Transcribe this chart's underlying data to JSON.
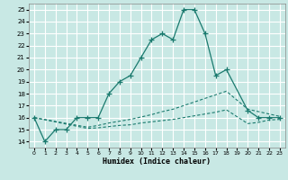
{
  "xlabel": "Humidex (Indice chaleur)",
  "bg_color": "#c8e8e4",
  "grid_color": "#ffffff",
  "line_color": "#1a7a6e",
  "xlim": [
    -0.5,
    23.5
  ],
  "ylim": [
    13.5,
    25.5
  ],
  "xticks": [
    0,
    1,
    2,
    3,
    4,
    5,
    6,
    7,
    8,
    9,
    10,
    11,
    12,
    13,
    14,
    15,
    16,
    17,
    18,
    19,
    20,
    21,
    22,
    23
  ],
  "yticks": [
    14,
    15,
    16,
    17,
    18,
    19,
    20,
    21,
    22,
    23,
    24,
    25
  ],
  "s1_x": [
    0,
    1,
    2,
    3,
    4,
    5,
    6,
    7,
    8,
    9,
    10,
    11,
    12,
    13,
    14,
    15,
    16,
    17,
    18,
    20,
    21,
    22,
    23
  ],
  "s1_y": [
    16,
    14,
    15,
    15,
    16,
    16,
    16,
    18,
    19,
    19.5,
    21,
    22.5,
    23,
    22.5,
    25,
    25,
    23,
    19.5,
    20,
    16.6,
    16,
    16,
    16
  ],
  "s2_x": [
    0,
    5,
    6,
    7,
    8,
    9,
    10,
    11,
    12,
    13,
    14,
    15,
    16,
    17,
    18,
    20,
    23
  ],
  "s2_y": [
    16,
    15.2,
    15.35,
    15.55,
    15.7,
    15.85,
    16.05,
    16.25,
    16.5,
    16.7,
    17.0,
    17.3,
    17.6,
    17.9,
    18.2,
    16.7,
    16.1
  ],
  "s3_x": [
    0,
    5,
    6,
    7,
    8,
    9,
    10,
    11,
    12,
    13,
    14,
    15,
    16,
    17,
    18,
    20,
    21,
    22,
    23
  ],
  "s3_y": [
    16,
    15.1,
    15.15,
    15.25,
    15.35,
    15.4,
    15.55,
    15.65,
    15.75,
    15.85,
    16.0,
    16.15,
    16.3,
    16.45,
    16.65,
    15.5,
    15.6,
    15.8,
    15.85
  ]
}
